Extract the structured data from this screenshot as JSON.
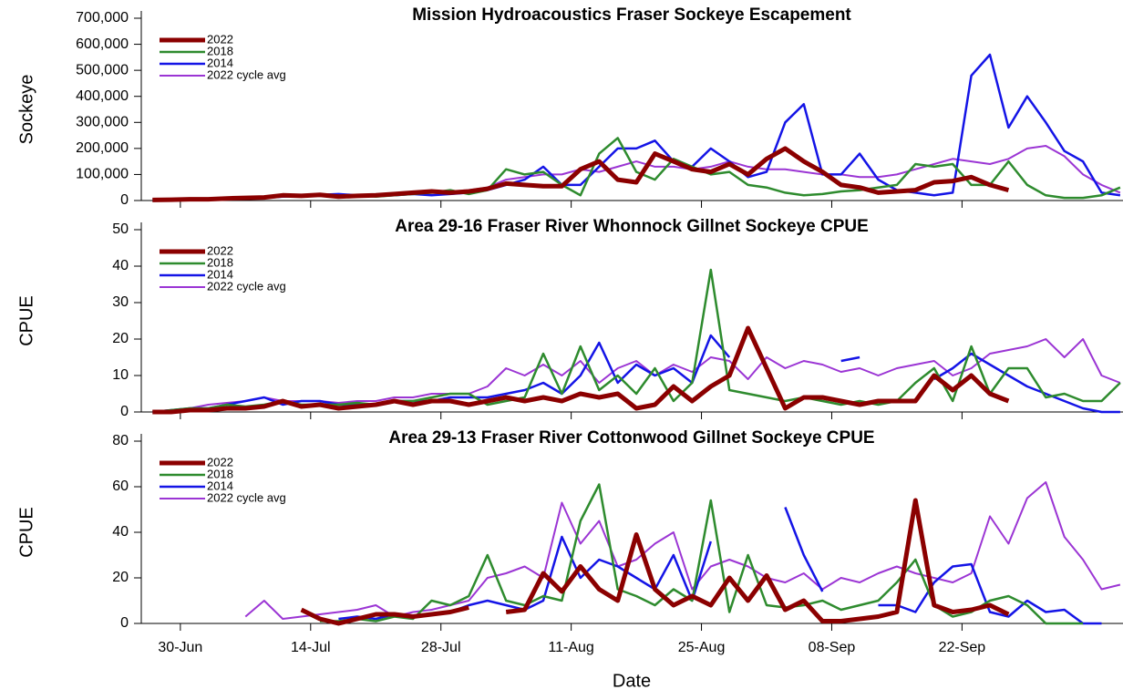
{
  "chart_data": [
    {
      "type": "line",
      "title": "Mission Hydroacoustics Fraser Sockeye Escapement",
      "ylabel": "Sockeye",
      "x": [
        178,
        180,
        182,
        184,
        186,
        188,
        190,
        192,
        194,
        196,
        198,
        200,
        202,
        204,
        206,
        208,
        210,
        212,
        214,
        216,
        218,
        220,
        222,
        224,
        226,
        228,
        230,
        232,
        234,
        236,
        238,
        240,
        242,
        244,
        246,
        248,
        250,
        252,
        254,
        256,
        258,
        260,
        262,
        264,
        266,
        268,
        270,
        272,
        274,
        276,
        278,
        280,
        282
      ],
      "xlim": [
        176.8,
        282.3
      ],
      "xticks": [
        181,
        195,
        209,
        223,
        237,
        251,
        265
      ],
      "ylim": [
        0,
        700000
      ],
      "yticks": [
        0,
        {
          "value": 100000,
          "label": "100,000"
        },
        {
          "value": 200000,
          "label": "200,000"
        },
        {
          "value": 300000,
          "label": "300,000"
        },
        {
          "value": 400000,
          "label": "400,000"
        },
        {
          "value": 500000,
          "label": "500,000"
        },
        {
          "value": 600000,
          "label": "600,000"
        },
        {
          "value": 700000,
          "label": "700,000"
        }
      ],
      "legend": "upper left",
      "series": [
        {
          "name": "2022",
          "color": "#8b0000",
          "values": [
            2000,
            3000,
            5000,
            5000,
            8000,
            10000,
            12000,
            20000,
            18000,
            22000,
            15000,
            18000,
            20000,
            25000,
            30000,
            35000,
            30000,
            35000,
            45000,
            65000,
            60000,
            55000,
            55000,
            120000,
            150000,
            80000,
            70000,
            180000,
            150000,
            120000,
            110000,
            140000,
            100000,
            160000,
            200000,
            150000,
            110000,
            60000,
            50000,
            30000,
            35000,
            40000,
            70000,
            75000,
            90000,
            60000,
            40000,
            null,
            null,
            null,
            null,
            null,
            null
          ]
        },
        {
          "name": "2018",
          "color": "#2e8b2e",
          "values": [
            0,
            2000,
            4000,
            5000,
            5000,
            8000,
            10000,
            18000,
            15000,
            22000,
            15000,
            20000,
            15000,
            20000,
            25000,
            30000,
            40000,
            25000,
            40000,
            120000,
            100000,
            110000,
            60000,
            20000,
            180000,
            240000,
            110000,
            80000,
            160000,
            130000,
            100000,
            110000,
            60000,
            50000,
            30000,
            20000,
            25000,
            35000,
            40000,
            50000,
            60000,
            140000,
            130000,
            140000,
            60000,
            60000,
            150000,
            60000,
            20000,
            10000,
            10000,
            20000,
            50000
          ]
        },
        {
          "name": "2014",
          "color": "#1414e6",
          "values": [
            0,
            2000,
            4000,
            5000,
            5000,
            8000,
            10000,
            15000,
            18000,
            22000,
            25000,
            20000,
            18000,
            20000,
            25000,
            20000,
            25000,
            30000,
            40000,
            60000,
            80000,
            130000,
            60000,
            60000,
            130000,
            200000,
            200000,
            230000,
            150000,
            130000,
            200000,
            150000,
            90000,
            110000,
            300000,
            370000,
            100000,
            100000,
            180000,
            80000,
            40000,
            30000,
            20000,
            30000,
            480000,
            560000,
            280000,
            400000,
            300000,
            190000,
            150000,
            30000,
            20000
          ]
        },
        {
          "name": "2022 cycle avg",
          "color": "#9b35d4",
          "values": [
            0,
            2000,
            4000,
            5000,
            6000,
            8000,
            10000,
            15000,
            15000,
            18000,
            20000,
            20000,
            22000,
            25000,
            30000,
            30000,
            30000,
            40000,
            50000,
            80000,
            90000,
            100000,
            100000,
            120000,
            110000,
            130000,
            150000,
            130000,
            130000,
            120000,
            130000,
            150000,
            130000,
            120000,
            120000,
            110000,
            100000,
            100000,
            90000,
            90000,
            100000,
            120000,
            140000,
            160000,
            150000,
            140000,
            160000,
            200000,
            210000,
            170000,
            100000,
            60000,
            30000
          ]
        }
      ]
    },
    {
      "type": "line",
      "title": "Area 29-16  Fraser River Whonnock Gillnet Sockeye CPUE",
      "ylabel": "CPUE",
      "x": [
        178,
        180,
        182,
        184,
        186,
        188,
        190,
        192,
        194,
        196,
        198,
        200,
        202,
        204,
        206,
        208,
        210,
        212,
        214,
        216,
        218,
        220,
        222,
        224,
        226,
        228,
        230,
        232,
        234,
        236,
        238,
        240,
        242,
        244,
        246,
        248,
        250,
        252,
        254,
        256,
        258,
        260,
        262,
        264,
        266,
        268,
        270,
        272,
        274,
        276,
        278,
        280,
        282
      ],
      "xlim": [
        176.8,
        282.3
      ],
      "xticks": [
        181,
        195,
        209,
        223,
        237,
        251,
        265
      ],
      "ylim": [
        0,
        50
      ],
      "yticks": [
        0,
        10,
        20,
        30,
        40,
        50
      ],
      "legend": "upper left",
      "series": [
        {
          "name": "2022",
          "color": "#8b0000",
          "values": [
            0,
            0,
            0.5,
            0.5,
            1,
            1,
            1.5,
            3,
            1.5,
            2,
            1,
            1.5,
            2,
            3,
            2,
            3,
            3,
            2,
            3,
            4,
            3,
            4,
            3,
            5,
            4,
            5,
            1,
            2,
            7,
            3,
            7,
            10,
            23,
            12,
            1,
            4,
            4,
            3,
            2,
            3,
            3,
            3,
            10,
            6,
            10,
            5,
            3,
            null,
            null,
            null,
            null,
            null,
            null
          ]
        },
        {
          "name": "2018",
          "color": "#2e8b2e",
          "values": [
            0,
            0.5,
            1,
            1,
            2,
            1.5,
            2,
            3,
            2,
            2,
            2,
            2.5,
            2,
            3,
            3,
            4,
            5,
            5,
            2,
            3,
            4,
            16,
            5,
            18,
            6,
            10,
            5,
            12,
            3,
            8,
            39,
            6,
            5,
            4,
            3,
            4,
            3,
            2,
            3,
            2,
            3,
            8,
            12,
            3,
            18,
            5,
            12,
            12,
            4,
            5,
            3,
            3,
            8
          ]
        },
        {
          "name": "2014",
          "color": "#1414e6",
          "values": [
            0,
            0.5,
            1,
            1,
            2,
            3,
            4,
            2,
            3,
            3,
            2,
            2,
            2,
            3,
            3,
            3,
            4,
            4,
            4,
            5,
            6,
            8,
            5,
            10,
            19,
            8,
            13,
            10,
            12,
            8,
            21,
            15,
            null,
            null,
            null,
            null,
            null,
            14,
            15,
            null,
            7,
            null,
            9,
            12,
            16,
            13,
            10,
            7,
            5,
            3,
            1,
            0,
            0
          ]
        },
        {
          "name": "2022 cycle avg",
          "color": "#9b35d4",
          "values": [
            0,
            0.5,
            1,
            2,
            2.5,
            3,
            4,
            3,
            3,
            3,
            2.5,
            3,
            3,
            4,
            4,
            5,
            5,
            5,
            7,
            12,
            10,
            13,
            10,
            14,
            8,
            12,
            14,
            10,
            13,
            11,
            15,
            14,
            9,
            15,
            12,
            14,
            13,
            11,
            12,
            10,
            12,
            13,
            14,
            10,
            12,
            16,
            17,
            18,
            20,
            15,
            20,
            10,
            8
          ]
        }
      ]
    },
    {
      "type": "line",
      "title": "Area 29-13  Fraser River Cottonwood Gillnet Sockeye CPUE",
      "ylabel": "CPUE",
      "xlabel": "Date",
      "x": [
        178,
        180,
        182,
        184,
        186,
        188,
        190,
        192,
        194,
        196,
        198,
        200,
        202,
        204,
        206,
        208,
        210,
        212,
        214,
        216,
        218,
        220,
        222,
        224,
        226,
        228,
        230,
        232,
        234,
        236,
        238,
        240,
        242,
        244,
        246,
        248,
        250,
        252,
        254,
        256,
        258,
        260,
        262,
        264,
        266,
        268,
        270,
        272,
        274,
        276,
        278,
        280,
        282
      ],
      "xlim": [
        176.8,
        282.3
      ],
      "xticks": [
        {
          "value": 181,
          "label": "30-Jun"
        },
        {
          "value": 195,
          "label": "14-Jul"
        },
        {
          "value": 209,
          "label": "28-Jul"
        },
        {
          "value": 223,
          "label": "11-Aug"
        },
        {
          "value": 237,
          "label": "25-Aug"
        },
        {
          "value": 251,
          "label": "08-Sep"
        },
        {
          "value": 265,
          "label": "22-Sep"
        }
      ],
      "ylim": [
        0,
        80
      ],
      "yticks": [
        0,
        20,
        40,
        60,
        80
      ],
      "legend": "upper left",
      "series": [
        {
          "name": "2022",
          "color": "#8b0000",
          "values": [
            null,
            null,
            null,
            null,
            null,
            null,
            null,
            null,
            6,
            2,
            0,
            2,
            4,
            4,
            3,
            4,
            5,
            7,
            null,
            5,
            6,
            22,
            14,
            25,
            15,
            10,
            39,
            15,
            8,
            12,
            8,
            20,
            10,
            21,
            6,
            10,
            1,
            1,
            2,
            3,
            5,
            54,
            8,
            5,
            6,
            8,
            4,
            null,
            null,
            null,
            null,
            null,
            null
          ]
        },
        {
          "name": "2018",
          "color": "#2e8b2e",
          "values": [
            null,
            null,
            null,
            null,
            null,
            null,
            null,
            null,
            null,
            1,
            1,
            2,
            1,
            3,
            2,
            10,
            8,
            12,
            30,
            10,
            8,
            12,
            10,
            45,
            61,
            15,
            12,
            8,
            15,
            10,
            54,
            5,
            30,
            8,
            7,
            8,
            10,
            6,
            8,
            10,
            18,
            28,
            8,
            3,
            5,
            10,
            12,
            8,
            0,
            0,
            0,
            null,
            null
          ]
        },
        {
          "name": "2014",
          "color": "#1414e6",
          "values": [
            null,
            null,
            null,
            null,
            null,
            null,
            null,
            null,
            null,
            null,
            2,
            3,
            2,
            4,
            3,
            4,
            5,
            8,
            10,
            8,
            6,
            10,
            38,
            20,
            28,
            25,
            20,
            15,
            30,
            10,
            36,
            null,
            null,
            null,
            51,
            30,
            14,
            null,
            null,
            8,
            8,
            5,
            18,
            25,
            26,
            5,
            3,
            10,
            5,
            6,
            0,
            0,
            null
          ]
        },
        {
          "name": "2022 cycle avg",
          "color": "#9b35d4",
          "values": [
            null,
            null,
            null,
            null,
            null,
            3,
            10,
            2,
            3,
            4,
            5,
            6,
            8,
            3,
            5,
            6,
            8,
            10,
            20,
            22,
            25,
            20,
            53,
            35,
            45,
            25,
            28,
            35,
            40,
            15,
            25,
            28,
            25,
            20,
            18,
            22,
            15,
            20,
            18,
            22,
            25,
            22,
            20,
            18,
            22,
            47,
            35,
            55,
            62,
            38,
            28,
            15,
            17
          ]
        }
      ]
    }
  ]
}
